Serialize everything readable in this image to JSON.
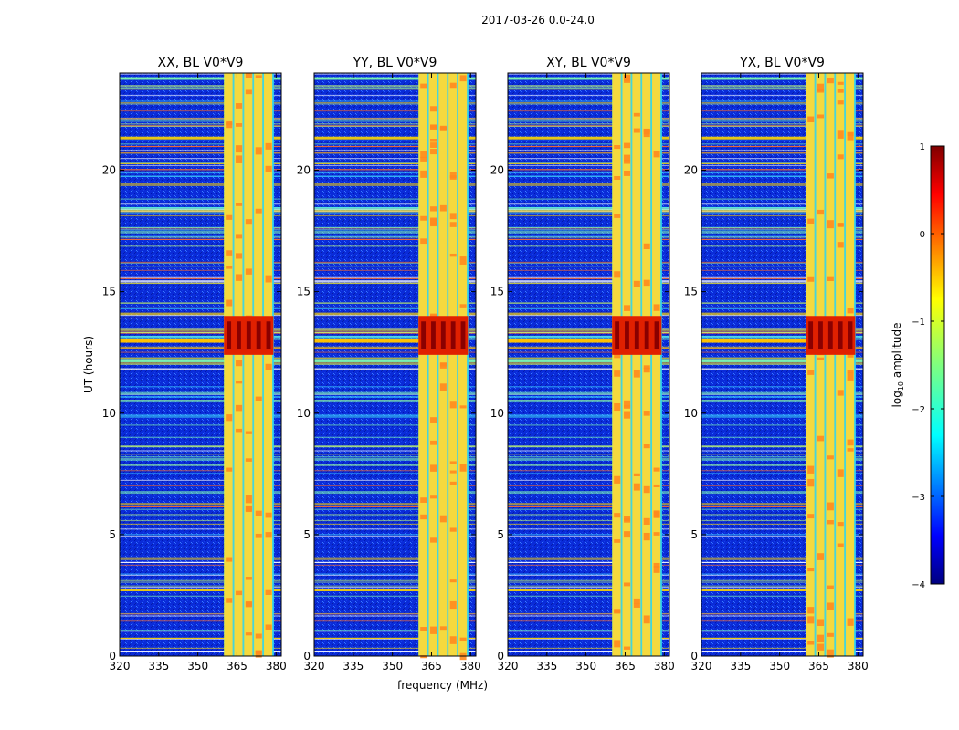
{
  "figure_title": "2017-03-26 0.0-24.0",
  "colors": {
    "background": "#ffffff",
    "spectrum_low": "#0a2bd8",
    "axis": "#000000"
  },
  "chart_data": [
    {
      "type": "heatmap",
      "title": "XX, BL V0*V9",
      "xlabel": "",
      "ylabel": "UT (hours)",
      "xlim": [
        320,
        382
      ],
      "ylim": [
        0,
        24
      ],
      "xticks": [
        320,
        335,
        350,
        365,
        380
      ],
      "yticks": [
        0,
        5,
        10,
        15,
        20
      ],
      "rfi_band_mhz": [
        360,
        379
      ],
      "bright_bursts_hours": [
        [
          12.4,
          14.0
        ]
      ]
    },
    {
      "type": "heatmap",
      "title": "YY, BL V0*V9",
      "xlabel": "frequency (MHz)",
      "ylabel": "",
      "xlim": [
        320,
        382
      ],
      "ylim": [
        0,
        24
      ],
      "xticks": [
        320,
        335,
        350,
        365,
        380
      ],
      "yticks": [
        0,
        5,
        10,
        15,
        20
      ],
      "rfi_band_mhz": [
        360,
        379
      ],
      "bright_bursts_hours": [
        [
          12.4,
          14.0
        ]
      ]
    },
    {
      "type": "heatmap",
      "title": "XY, BL V0*V9",
      "xlabel": "",
      "ylabel": "",
      "xlim": [
        320,
        382
      ],
      "ylim": [
        0,
        24
      ],
      "xticks": [
        320,
        335,
        350,
        365,
        380
      ],
      "yticks": [
        0,
        5,
        10,
        15,
        20
      ],
      "rfi_band_mhz": [
        360,
        379
      ],
      "bright_bursts_hours": [
        [
          12.4,
          14.0
        ]
      ]
    },
    {
      "type": "heatmap",
      "title": "YX, BL V0*V9",
      "xlabel": "",
      "ylabel": "",
      "xlim": [
        320,
        382
      ],
      "ylim": [
        0,
        24
      ],
      "xticks": [
        320,
        335,
        350,
        365,
        380
      ],
      "yticks": [
        0,
        5,
        10,
        15,
        20
      ],
      "rfi_band_mhz": [
        360,
        379
      ],
      "bright_bursts_hours": [
        [
          12.4,
          14.0
        ]
      ]
    }
  ],
  "colorbar": {
    "label_prefix": "log",
    "label_sub": "10",
    "label_suffix": " amplitude",
    "range": [
      -4,
      1
    ],
    "ticks": [
      {
        "value": 1,
        "label": "1"
      },
      {
        "value": 0,
        "label": "0"
      },
      {
        "value": -1,
        "label": "−1"
      },
      {
        "value": -2,
        "label": "−2"
      },
      {
        "value": -3,
        "label": "−3"
      },
      {
        "value": -4,
        "label": "−4"
      }
    ]
  }
}
